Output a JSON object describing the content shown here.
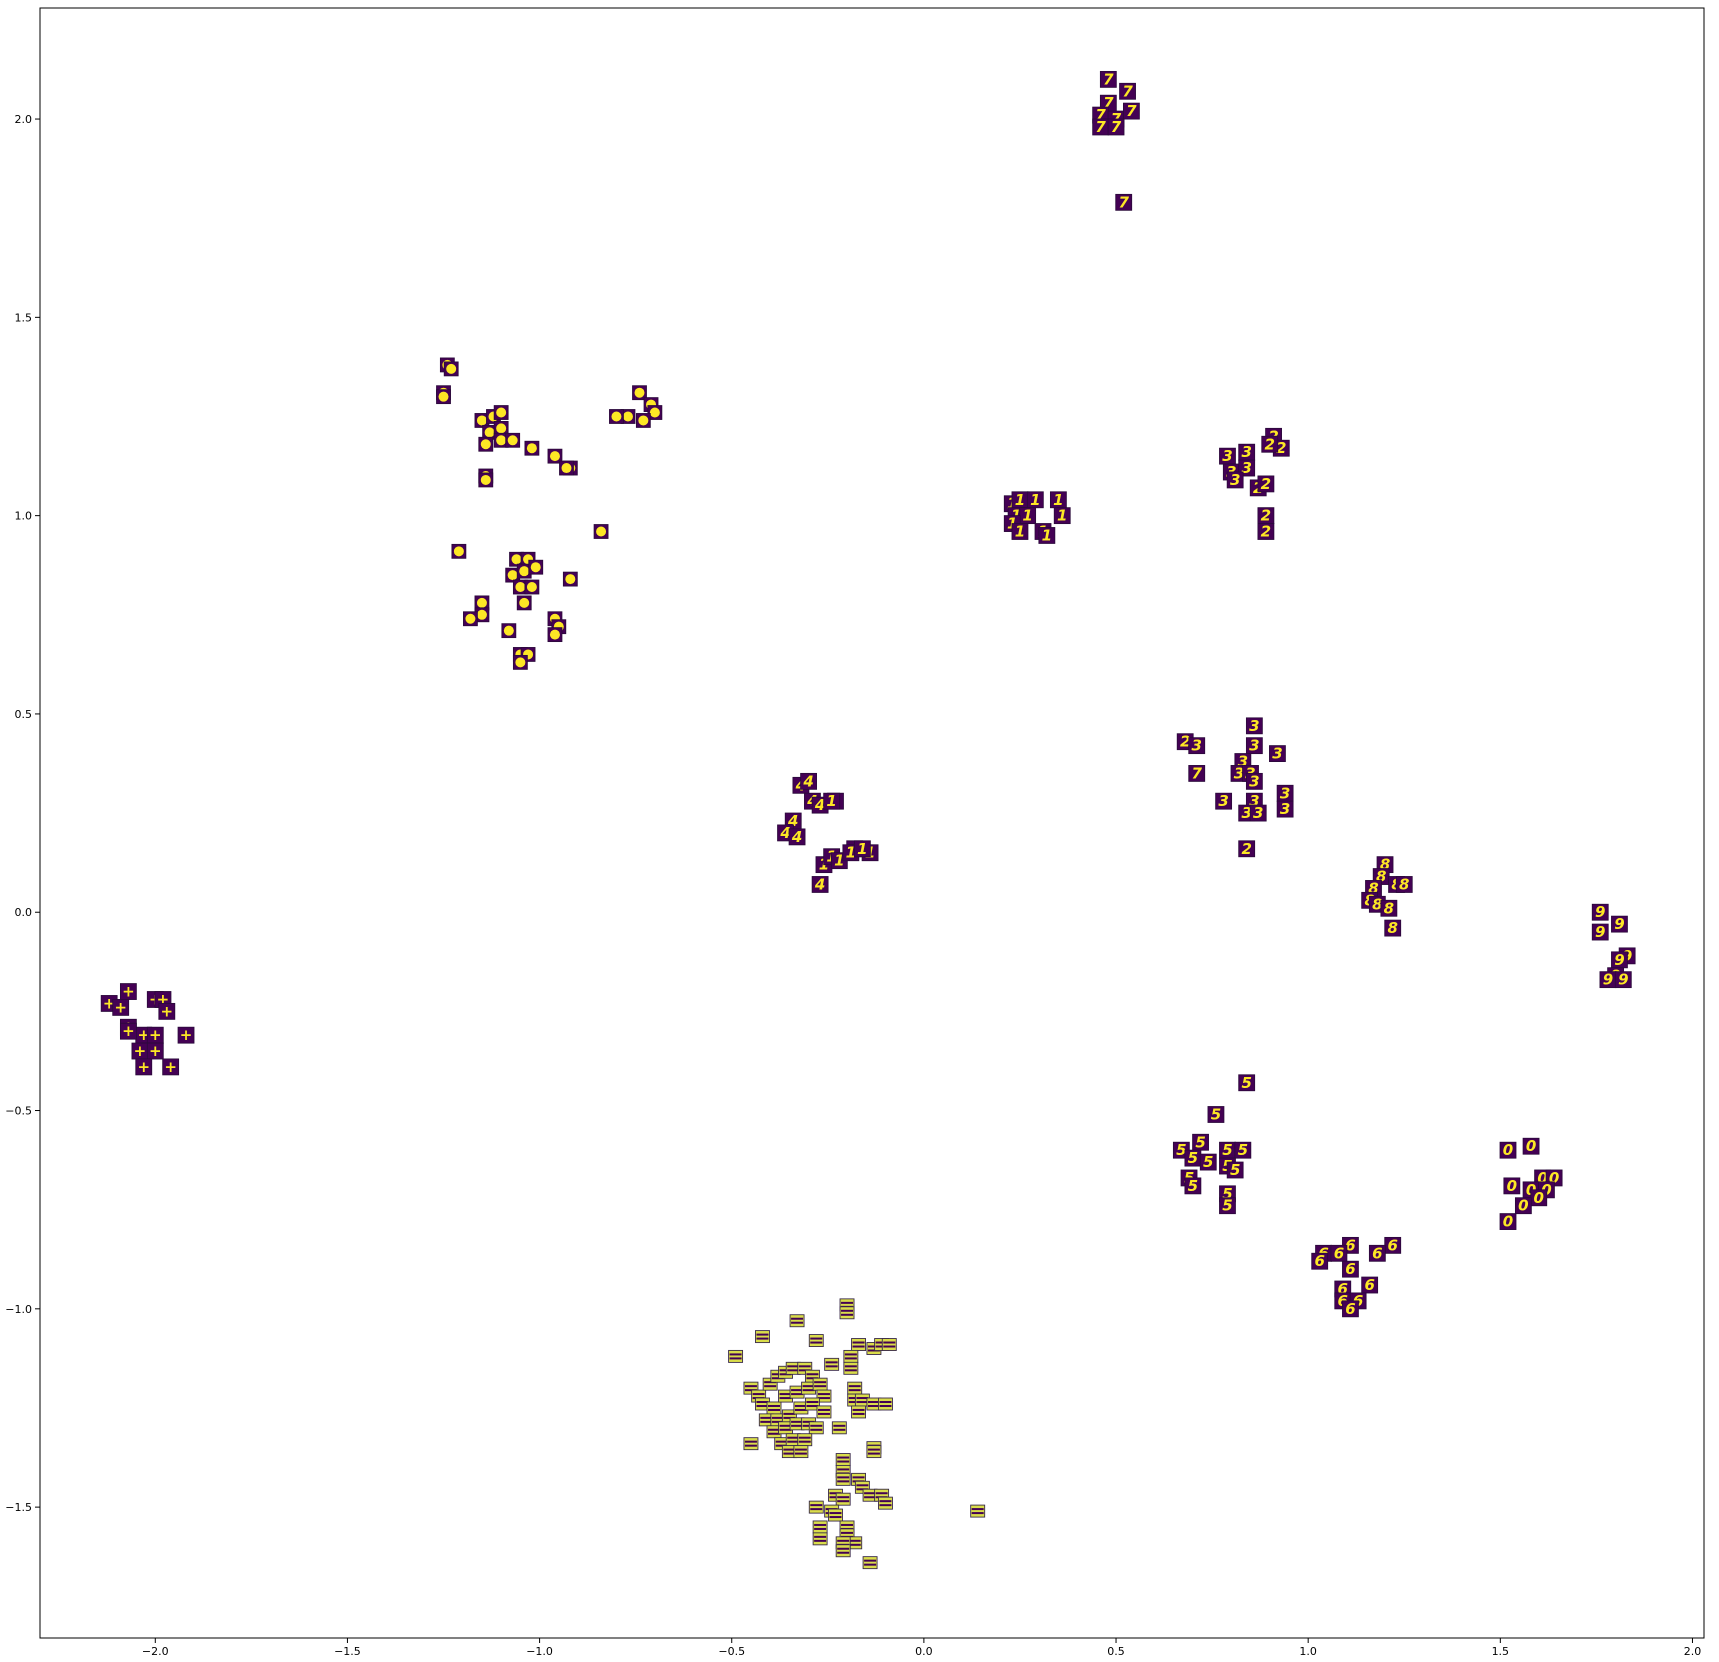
{
  "chart_data": {
    "type": "scatter",
    "title": "",
    "xlabel": "",
    "ylabel": "",
    "xlim": [
      -2.3,
      2.03
    ],
    "ylim": [
      -1.83,
      2.28
    ],
    "grid": false,
    "x_ticks": [
      -2.0,
      -1.5,
      -1.0,
      -0.5,
      0.0,
      0.5,
      1.0,
      1.5,
      2.0
    ],
    "x_tick_labels": [
      "−2.0",
      "−1.5",
      "−1.0",
      "−0.5",
      "0.0",
      "0.5",
      "1.0",
      "1.5",
      "2.0"
    ],
    "y_ticks": [
      -1.5,
      -1.0,
      -0.5,
      0.0,
      0.5,
      1.0,
      1.5,
      2.0
    ],
    "y_tick_labels": [
      "−1.5",
      "−1.0",
      "−0.5",
      "0.0",
      "0.5",
      "1.0",
      "1.5",
      "2.0"
    ],
    "marker_colors": {
      "background": "#440154",
      "glyph": "#fde725"
    },
    "clusters": [
      {
        "label": "7",
        "style": "digit",
        "points": [
          [
            0.48,
            2.1
          ],
          [
            0.53,
            2.07
          ],
          [
            0.48,
            2.04
          ],
          [
            0.46,
            2.01
          ],
          [
            0.5,
            2.0
          ],
          [
            0.54,
            2.02
          ],
          [
            0.46,
            1.98
          ],
          [
            0.5,
            1.98
          ],
          [
            0.52,
            1.79
          ]
        ]
      },
      {
        "label": "1",
        "style": "digit",
        "points": [
          [
            0.23,
            1.03
          ],
          [
            0.25,
            1.04
          ],
          [
            0.29,
            1.04
          ],
          [
            0.35,
            1.04
          ],
          [
            0.24,
            1.0
          ],
          [
            0.27,
            1.0
          ],
          [
            0.36,
            1.0
          ],
          [
            0.23,
            0.98
          ],
          [
            0.25,
            0.96
          ],
          [
            0.31,
            0.96
          ],
          [
            0.32,
            0.95
          ]
        ]
      },
      {
        "label": "2",
        "style": "digit",
        "points": [
          [
            0.91,
            1.2
          ],
          [
            0.93,
            1.17
          ],
          [
            0.87,
            1.07
          ],
          [
            0.89,
            1.08
          ],
          [
            0.89,
            1.0
          ],
          [
            0.89,
            0.96
          ],
          [
            0.68,
            0.43
          ],
          [
            0.84,
            0.16
          ],
          [
            0.9,
            1.18
          ]
        ]
      },
      {
        "label": "3",
        "style": "digit",
        "points": [
          [
            0.79,
            1.15
          ],
          [
            0.84,
            1.16
          ],
          [
            0.8,
            1.11
          ],
          [
            0.84,
            1.12
          ],
          [
            0.81,
            1.09
          ],
          [
            0.86,
            0.47
          ],
          [
            0.86,
            0.42
          ],
          [
            0.92,
            0.4
          ],
          [
            0.83,
            0.38
          ],
          [
            0.82,
            0.35
          ],
          [
            0.85,
            0.35
          ],
          [
            0.86,
            0.33
          ],
          [
            0.71,
            0.42
          ],
          [
            0.94,
            0.3
          ],
          [
            0.86,
            0.28
          ],
          [
            0.78,
            0.28
          ],
          [
            0.84,
            0.25
          ],
          [
            0.87,
            0.25
          ],
          [
            0.94,
            0.26
          ]
        ]
      },
      {
        "label": "7",
        "style": "digit",
        "points": [
          [
            0.71,
            0.35
          ]
        ]
      },
      {
        "label": "4",
        "style": "digit",
        "points": [
          [
            -0.32,
            0.32
          ],
          [
            -0.3,
            0.33
          ],
          [
            -0.29,
            0.28
          ],
          [
            -0.27,
            0.27
          ],
          [
            -0.23,
            0.28
          ],
          [
            -0.34,
            0.23
          ],
          [
            -0.36,
            0.2
          ],
          [
            -0.33,
            0.19
          ],
          [
            -0.27,
            0.07
          ],
          [
            -0.18,
            0.16
          ]
        ]
      },
      {
        "label": "1",
        "style": "digit",
        "points": [
          [
            -0.24,
            0.28
          ],
          [
            -0.26,
            0.12
          ],
          [
            -0.24,
            0.14
          ],
          [
            -0.22,
            0.13
          ],
          [
            -0.19,
            0.15
          ],
          [
            -0.14,
            0.15
          ],
          [
            -0.16,
            0.16
          ]
        ]
      },
      {
        "label": "8",
        "style": "digit",
        "points": [
          [
            1.2,
            0.12
          ],
          [
            1.19,
            0.09
          ],
          [
            1.17,
            0.06
          ],
          [
            1.23,
            0.07
          ],
          [
            1.25,
            0.07
          ],
          [
            1.16,
            0.03
          ],
          [
            1.18,
            0.02
          ],
          [
            1.21,
            0.01
          ],
          [
            1.22,
            -0.04
          ]
        ]
      },
      {
        "label": "9",
        "style": "digit",
        "points": [
          [
            1.76,
            0.0
          ],
          [
            1.81,
            -0.03
          ],
          [
            1.76,
            -0.05
          ],
          [
            1.83,
            -0.11
          ],
          [
            1.81,
            -0.12
          ],
          [
            1.8,
            -0.16
          ],
          [
            1.78,
            -0.17
          ],
          [
            1.82,
            -0.17
          ]
        ]
      },
      {
        "label": "5",
        "style": "digit",
        "points": [
          [
            0.84,
            -0.43
          ],
          [
            0.76,
            -0.51
          ],
          [
            0.67,
            -0.6
          ],
          [
            0.72,
            -0.58
          ],
          [
            0.79,
            -0.6
          ],
          [
            0.83,
            -0.6
          ],
          [
            0.7,
            -0.62
          ],
          [
            0.74,
            -0.63
          ],
          [
            0.79,
            -0.64
          ],
          [
            0.81,
            -0.65
          ],
          [
            0.69,
            -0.67
          ],
          [
            0.7,
            -0.69
          ],
          [
            0.79,
            -0.71
          ],
          [
            0.79,
            -0.74
          ]
        ]
      },
      {
        "label": "0",
        "style": "digit",
        "points": [
          [
            1.52,
            -0.6
          ],
          [
            1.58,
            -0.59
          ],
          [
            1.61,
            -0.67
          ],
          [
            1.64,
            -0.67
          ],
          [
            1.53,
            -0.69
          ],
          [
            1.58,
            -0.7
          ],
          [
            1.62,
            -0.7
          ],
          [
            1.6,
            -0.72
          ],
          [
            1.56,
            -0.74
          ],
          [
            1.52,
            -0.78
          ]
        ]
      },
      {
        "label": "6",
        "style": "digit",
        "points": [
          [
            1.22,
            -0.84
          ],
          [
            1.11,
            -0.84
          ],
          [
            1.04,
            -0.86
          ],
          [
            1.08,
            -0.86
          ],
          [
            1.18,
            -0.86
          ],
          [
            1.03,
            -0.88
          ],
          [
            1.11,
            -0.9
          ],
          [
            1.09,
            -0.95
          ],
          [
            1.16,
            -0.94
          ],
          [
            1.09,
            -0.98
          ],
          [
            1.13,
            -0.98
          ],
          [
            1.11,
            -1.0
          ]
        ]
      },
      {
        "label": "+",
        "style": "digit",
        "points": [
          [
            -2.07,
            -0.2
          ],
          [
            -2.12,
            -0.23
          ],
          [
            -2.09,
            -0.24
          ],
          [
            -2.0,
            -0.22
          ],
          [
            -1.98,
            -0.22
          ],
          [
            -1.97,
            -0.25
          ],
          [
            -2.07,
            -0.29
          ],
          [
            -2.03,
            -0.31
          ],
          [
            -2.0,
            -0.31
          ],
          [
            -2.07,
            -0.3
          ],
          [
            -1.92,
            -0.31
          ],
          [
            -2.04,
            -0.35
          ],
          [
            -2.0,
            -0.35
          ],
          [
            -2.03,
            -0.39
          ],
          [
            -1.96,
            -0.39
          ]
        ]
      },
      {
        "label": "•",
        "style": "dot",
        "points": [
          [
            -1.24,
            1.38
          ],
          [
            -1.23,
            1.37
          ],
          [
            -1.25,
            1.31
          ],
          [
            -1.25,
            1.3
          ],
          [
            -0.74,
            1.31
          ],
          [
            -0.71,
            1.28
          ],
          [
            -0.7,
            1.26
          ],
          [
            -0.73,
            1.24
          ],
          [
            -0.77,
            1.25
          ],
          [
            -0.8,
            1.25
          ],
          [
            -1.15,
            1.24
          ],
          [
            -1.12,
            1.25
          ],
          [
            -1.1,
            1.26
          ],
          [
            -1.13,
            1.21
          ],
          [
            -1.1,
            1.22
          ],
          [
            -1.14,
            1.18
          ],
          [
            -1.1,
            1.19
          ],
          [
            -1.07,
            1.19
          ],
          [
            -1.02,
            1.17
          ],
          [
            -0.96,
            1.15
          ],
          [
            -0.92,
            1.12
          ],
          [
            -0.93,
            1.12
          ],
          [
            -1.14,
            1.1
          ],
          [
            -1.14,
            1.09
          ],
          [
            -0.84,
            0.96
          ],
          [
            -1.21,
            0.91
          ],
          [
            -1.06,
            0.89
          ],
          [
            -1.03,
            0.89
          ],
          [
            -1.07,
            0.85
          ],
          [
            -1.04,
            0.86
          ],
          [
            -1.01,
            0.87
          ],
          [
            -1.05,
            0.82
          ],
          [
            -1.02,
            0.82
          ],
          [
            -1.04,
            0.78
          ],
          [
            -0.92,
            0.84
          ],
          [
            -1.15,
            0.78
          ],
          [
            -1.15,
            0.75
          ],
          [
            -1.18,
            0.74
          ],
          [
            -0.96,
            0.74
          ],
          [
            -0.95,
            0.72
          ],
          [
            -0.96,
            0.7
          ],
          [
            -1.08,
            0.71
          ],
          [
            -1.05,
            0.65
          ],
          [
            -1.03,
            0.65
          ],
          [
            -1.05,
            0.63
          ]
        ]
      },
      {
        "label": "=",
        "style": "bar",
        "points": [
          [
            -0.49,
            -1.12
          ],
          [
            -0.42,
            -1.07
          ],
          [
            -0.33,
            -1.03
          ],
          [
            -0.28,
            -1.08
          ],
          [
            -0.2,
            -0.99
          ],
          [
            -0.2,
            -1.01
          ],
          [
            -0.17,
            -1.09
          ],
          [
            -0.13,
            -1.1
          ],
          [
            -0.11,
            -1.09
          ],
          [
            -0.09,
            -1.09
          ],
          [
            -0.19,
            -1.12
          ],
          [
            -0.19,
            -1.15
          ],
          [
            -0.24,
            -1.14
          ],
          [
            -0.45,
            -1.2
          ],
          [
            -0.43,
            -1.22
          ],
          [
            -0.4,
            -1.19
          ],
          [
            -0.38,
            -1.17
          ],
          [
            -0.36,
            -1.16
          ],
          [
            -0.34,
            -1.15
          ],
          [
            -0.31,
            -1.15
          ],
          [
            -0.29,
            -1.17
          ],
          [
            -0.42,
            -1.24
          ],
          [
            -0.39,
            -1.25
          ],
          [
            -0.36,
            -1.22
          ],
          [
            -0.33,
            -1.21
          ],
          [
            -0.3,
            -1.2
          ],
          [
            -0.27,
            -1.19
          ],
          [
            -0.26,
            -1.22
          ],
          [
            -0.41,
            -1.28
          ],
          [
            -0.38,
            -1.28
          ],
          [
            -0.35,
            -1.27
          ],
          [
            -0.32,
            -1.25
          ],
          [
            -0.29,
            -1.24
          ],
          [
            -0.26,
            -1.26
          ],
          [
            -0.39,
            -1.31
          ],
          [
            -0.36,
            -1.3
          ],
          [
            -0.33,
            -1.29
          ],
          [
            -0.3,
            -1.29
          ],
          [
            -0.28,
            -1.3
          ],
          [
            -0.37,
            -1.34
          ],
          [
            -0.34,
            -1.33
          ],
          [
            -0.31,
            -1.33
          ],
          [
            -0.35,
            -1.36
          ],
          [
            -0.32,
            -1.36
          ],
          [
            -0.18,
            -1.2
          ],
          [
            -0.18,
            -1.23
          ],
          [
            -0.16,
            -1.23
          ],
          [
            -0.13,
            -1.24
          ],
          [
            -0.1,
            -1.24
          ],
          [
            -0.17,
            -1.26
          ],
          [
            -0.22,
            -1.3
          ],
          [
            -0.45,
            -1.34
          ],
          [
            -0.13,
            -1.35
          ],
          [
            -0.13,
            -1.36
          ],
          [
            -0.21,
            -1.38
          ],
          [
            -0.21,
            -1.41
          ],
          [
            -0.21,
            -1.43
          ],
          [
            -0.17,
            -1.43
          ],
          [
            -0.16,
            -1.45
          ],
          [
            -0.23,
            -1.47
          ],
          [
            -0.21,
            -1.48
          ],
          [
            -0.14,
            -1.47
          ],
          [
            -0.11,
            -1.47
          ],
          [
            -0.1,
            -1.49
          ],
          [
            -0.28,
            -1.5
          ],
          [
            -0.24,
            -1.51
          ],
          [
            -0.23,
            -1.52
          ],
          [
            -0.27,
            -1.55
          ],
          [
            -0.27,
            -1.58
          ],
          [
            -0.2,
            -1.55
          ],
          [
            -0.2,
            -1.57
          ],
          [
            -0.18,
            -1.59
          ],
          [
            -0.21,
            -1.59
          ],
          [
            -0.21,
            -1.61
          ],
          [
            -0.14,
            -1.64
          ],
          [
            0.14,
            -1.51
          ]
        ]
      }
    ]
  }
}
